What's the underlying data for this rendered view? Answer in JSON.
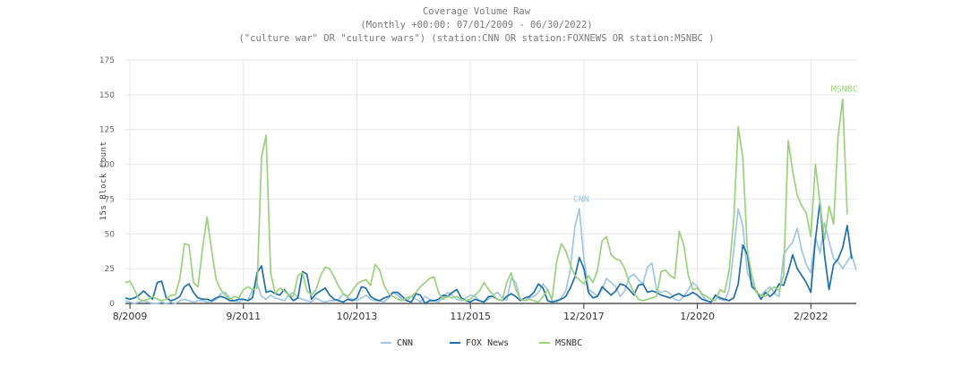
{
  "chart_data": {
    "type": "line",
    "title": "Coverage Volume Raw",
    "subtitle1": "(Monthly +00:00: 07/01/2009 - 06/30/2022)",
    "subtitle2": "(\"culture war\" OR \"culture wars\") (station:CNN OR station:FOXNEWS OR station:MSNBC )",
    "ylabel": "15s Block Count",
    "ylim": [
      0,
      175
    ],
    "yticks": [
      0,
      25,
      50,
      75,
      100,
      125,
      150,
      175
    ],
    "x_start": "2009-07",
    "x_tick_labels": [
      "8/2009",
      "9/2011",
      "10/2013",
      "11/2015",
      "12/2017",
      "1/2020",
      "2/2022"
    ],
    "x_tick_index": [
      1,
      26,
      51,
      76,
      101,
      126,
      151
    ],
    "grid": true,
    "legend_position": "bottom",
    "series": [
      {
        "name": "CNN",
        "color": "#9fc6e3",
        "label": "CNN",
        "values": [
          2,
          1,
          0,
          1,
          2,
          1,
          0,
          0,
          1,
          0,
          1,
          0,
          2,
          3,
          2,
          1,
          2,
          2,
          1,
          1,
          3,
          7,
          8,
          4,
          2,
          1,
          3,
          2,
          10,
          14,
          5,
          3,
          6,
          4,
          3,
          2,
          6,
          8,
          4,
          3,
          2,
          1,
          4,
          2,
          1,
          2,
          2,
          3,
          7,
          4,
          3,
          2,
          4,
          6,
          3,
          2,
          2,
          1,
          4,
          8,
          6,
          3,
          2,
          5,
          3,
          1,
          5,
          3,
          2,
          1,
          4,
          8,
          6,
          3,
          2,
          4,
          6,
          5,
          2,
          1,
          3,
          6,
          8,
          4,
          2,
          18,
          15,
          3,
          2,
          4,
          5,
          8,
          14,
          10,
          2,
          1,
          4,
          9,
          24,
          55,
          68,
          32,
          10,
          8,
          5,
          10,
          18,
          15,
          12,
          5,
          9,
          19,
          21,
          17,
          14,
          26,
          29,
          10,
          8,
          9,
          7,
          3,
          2,
          5,
          10,
          15,
          12,
          6,
          2,
          1,
          5,
          3,
          2,
          10,
          38,
          68,
          56,
          22,
          15,
          8,
          6,
          9,
          12,
          7,
          5,
          35,
          40,
          44,
          54,
          38,
          28,
          22,
          48,
          36,
          58,
          45,
          32,
          30,
          25,
          30,
          35,
          24
        ]
      },
      {
        "name": "FOX News",
        "color": "#1f6fab",
        "label": "",
        "values": [
          4,
          3,
          4,
          6,
          9,
          6,
          3,
          15,
          16,
          4,
          2,
          3,
          5,
          12,
          14,
          8,
          4,
          3,
          3,
          2,
          4,
          5,
          4,
          2,
          2,
          3,
          3,
          2,
          4,
          22,
          27,
          8,
          9,
          7,
          6,
          10,
          6,
          2,
          4,
          23,
          21,
          3,
          7,
          9,
          11,
          6,
          3,
          2,
          1,
          3,
          2,
          4,
          12,
          11,
          5,
          3,
          2,
          4,
          5,
          8,
          8,
          5,
          2,
          1,
          7,
          6,
          0,
          2,
          2,
          3,
          6,
          5,
          8,
          10,
          4,
          2,
          1,
          3,
          2,
          1,
          5,
          5,
          3,
          2,
          5,
          7,
          5,
          2,
          4,
          5,
          8,
          14,
          11,
          2,
          1,
          2,
          3,
          5,
          11,
          19,
          33,
          25,
          8,
          4,
          5,
          12,
          9,
          6,
          9,
          14,
          13,
          10,
          6,
          13,
          14,
          8,
          9,
          8,
          6,
          5,
          4,
          6,
          7,
          5,
          6,
          8,
          6,
          3,
          2,
          1,
          6,
          4,
          3,
          2,
          4,
          14,
          42,
          35,
          12,
          9,
          3,
          8,
          5,
          8,
          14,
          13,
          23,
          35,
          25,
          20,
          15,
          8,
          46,
          73,
          35,
          10,
          28,
          32,
          40,
          56,
          32
        ]
      },
      {
        "name": "MSNBC",
        "color": "#9ad27a",
        "label": "MSNBC",
        "values": [
          15,
          16,
          10,
          3,
          2,
          3,
          5,
          3,
          2,
          3,
          6,
          6,
          18,
          43,
          42,
          15,
          12,
          40,
          62,
          38,
          17,
          10,
          6,
          3,
          5,
          4,
          10,
          12,
          10,
          11,
          105,
          121,
          22,
          7,
          11,
          9,
          6,
          5,
          20,
          22,
          9,
          6,
          10,
          20,
          26,
          25,
          19,
          12,
          7,
          5,
          9,
          14,
          16,
          17,
          13,
          28,
          24,
          13,
          7,
          5,
          3,
          2,
          4,
          5,
          8,
          12,
          15,
          18,
          19,
          8,
          3,
          5,
          4,
          5,
          3,
          2,
          3,
          6,
          9,
          15,
          10,
          6,
          3,
          2,
          15,
          22,
          10,
          3,
          2,
          3,
          2,
          1,
          5,
          10,
          3,
          30,
          43,
          38,
          28,
          20,
          17,
          14,
          20,
          15,
          24,
          45,
          48,
          35,
          32,
          31,
          25,
          15,
          8,
          3,
          2,
          3,
          4,
          5,
          23,
          24,
          20,
          18,
          52,
          42,
          20,
          10,
          11,
          7,
          5,
          3,
          2,
          10,
          8,
          24,
          60,
          127,
          105,
          38,
          20,
          8,
          6,
          5,
          10,
          12,
          9,
          20,
          117,
          95,
          78,
          70,
          65,
          48,
          100,
          72,
          46,
          70,
          57,
          120,
          147,
          64
        ]
      }
    ],
    "legend": [
      "CNN",
      "FOX News",
      "MSNBC"
    ]
  }
}
